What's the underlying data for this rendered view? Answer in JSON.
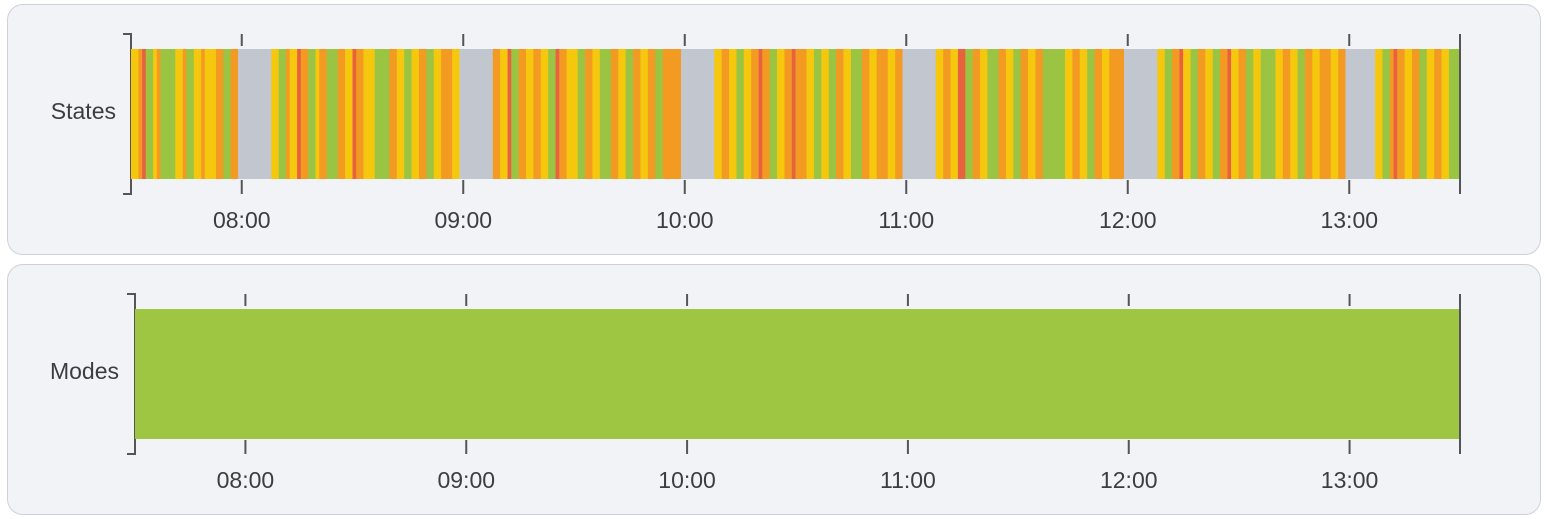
{
  "chart_data": [
    {
      "type": "timeline",
      "row_label": "States",
      "x_ticks": [
        "08:00",
        "09:00",
        "10:00",
        "11:00",
        "12:00",
        "13:00"
      ],
      "x_range": [
        "07:30",
        "13:30"
      ],
      "colors": {
        "green": "#9bc442",
        "yellow": "#f5c80e",
        "orange": "#f39a23",
        "red": "#e8623f",
        "gray": "#c2c6cf"
      },
      "segments": [
        [
          "07:30",
          "07:32",
          "yellow"
        ],
        [
          "07:32",
          "07:33",
          "orange"
        ],
        [
          "07:33",
          "07:34",
          "red"
        ],
        [
          "07:34",
          "07:36",
          "green"
        ],
        [
          "07:36",
          "07:37",
          "yellow"
        ],
        [
          "07:37",
          "07:38",
          "orange"
        ],
        [
          "07:38",
          "07:42",
          "green"
        ],
        [
          "07:42",
          "07:44",
          "yellow"
        ],
        [
          "07:44",
          "07:45",
          "orange"
        ],
        [
          "07:45",
          "07:47",
          "green"
        ],
        [
          "07:47",
          "07:49",
          "yellow"
        ],
        [
          "07:49",
          "07:50",
          "orange"
        ],
        [
          "07:50",
          "07:53",
          "yellow"
        ],
        [
          "07:53",
          "07:55",
          "orange"
        ],
        [
          "07:55",
          "07:57",
          "green"
        ],
        [
          "07:57",
          "07:59",
          "orange"
        ],
        [
          "07:59",
          "08:08",
          "gray"
        ],
        [
          "08:08",
          "08:10",
          "yellow"
        ],
        [
          "08:10",
          "08:12",
          "green"
        ],
        [
          "08:12",
          "08:13",
          "orange"
        ],
        [
          "08:13",
          "08:15",
          "yellow"
        ],
        [
          "08:15",
          "08:16",
          "red"
        ],
        [
          "08:16",
          "08:18",
          "orange"
        ],
        [
          "08:18",
          "08:20",
          "green"
        ],
        [
          "08:20",
          "08:21",
          "yellow"
        ],
        [
          "08:21",
          "08:23",
          "orange"
        ],
        [
          "08:23",
          "08:26",
          "green"
        ],
        [
          "08:26",
          "08:28",
          "orange"
        ],
        [
          "08:28",
          "08:30",
          "yellow"
        ],
        [
          "08:30",
          "08:31",
          "red"
        ],
        [
          "08:31",
          "08:33",
          "orange"
        ],
        [
          "08:33",
          "08:36",
          "yellow"
        ],
        [
          "08:36",
          "08:40",
          "green"
        ],
        [
          "08:40",
          "08:42",
          "orange"
        ],
        [
          "08:42",
          "08:44",
          "yellow"
        ],
        [
          "08:44",
          "08:46",
          "green"
        ],
        [
          "08:46",
          "08:48",
          "yellow"
        ],
        [
          "08:48",
          "08:50",
          "orange"
        ],
        [
          "08:50",
          "08:52",
          "green"
        ],
        [
          "08:52",
          "08:54",
          "yellow"
        ],
        [
          "08:54",
          "08:57",
          "orange"
        ],
        [
          "08:57",
          "08:59",
          "yellow"
        ],
        [
          "08:59",
          "09:08",
          "gray"
        ],
        [
          "09:08",
          "09:10",
          "orange"
        ],
        [
          "09:10",
          "09:12",
          "yellow"
        ],
        [
          "09:12",
          "09:13",
          "red"
        ],
        [
          "09:13",
          "09:15",
          "green"
        ],
        [
          "09:15",
          "09:17",
          "orange"
        ],
        [
          "09:17",
          "09:19",
          "yellow"
        ],
        [
          "09:19",
          "09:21",
          "orange"
        ],
        [
          "09:21",
          "09:23",
          "yellow"
        ],
        [
          "09:23",
          "09:25",
          "green"
        ],
        [
          "09:25",
          "09:26",
          "red"
        ],
        [
          "09:26",
          "09:28",
          "orange"
        ],
        [
          "09:28",
          "09:31",
          "yellow"
        ],
        [
          "09:31",
          "09:33",
          "green"
        ],
        [
          "09:33",
          "09:35",
          "orange"
        ],
        [
          "09:35",
          "09:37",
          "yellow"
        ],
        [
          "09:37",
          "09:40",
          "green"
        ],
        [
          "09:40",
          "09:42",
          "orange"
        ],
        [
          "09:42",
          "09:44",
          "yellow"
        ],
        [
          "09:44",
          "09:46",
          "green"
        ],
        [
          "09:46",
          "09:48",
          "orange"
        ],
        [
          "09:48",
          "09:50",
          "yellow"
        ],
        [
          "09:50",
          "09:52",
          "orange"
        ],
        [
          "09:52",
          "09:54",
          "green"
        ],
        [
          "09:54",
          "09:57",
          "orange"
        ],
        [
          "09:57",
          "09:59",
          "orange"
        ],
        [
          "09:59",
          "10:08",
          "gray"
        ],
        [
          "10:08",
          "10:10",
          "yellow"
        ],
        [
          "10:10",
          "10:12",
          "orange"
        ],
        [
          "10:12",
          "10:14",
          "yellow"
        ],
        [
          "10:14",
          "10:16",
          "green"
        ],
        [
          "10:16",
          "10:18",
          "yellow"
        ],
        [
          "10:18",
          "10:20",
          "orange"
        ],
        [
          "10:20",
          "10:21",
          "red"
        ],
        [
          "10:21",
          "10:23",
          "orange"
        ],
        [
          "10:23",
          "10:25",
          "green"
        ],
        [
          "10:25",
          "10:27",
          "yellow"
        ],
        [
          "10:27",
          "10:29",
          "orange"
        ],
        [
          "10:29",
          "10:30",
          "red"
        ],
        [
          "10:30",
          "10:33",
          "orange"
        ],
        [
          "10:33",
          "10:35",
          "yellow"
        ],
        [
          "10:35",
          "10:37",
          "green"
        ],
        [
          "10:37",
          "10:39",
          "yellow"
        ],
        [
          "10:39",
          "10:41",
          "green"
        ],
        [
          "10:41",
          "10:43",
          "orange"
        ],
        [
          "10:43",
          "10:45",
          "yellow"
        ],
        [
          "10:45",
          "10:48",
          "green"
        ],
        [
          "10:48",
          "10:50",
          "orange"
        ],
        [
          "10:50",
          "10:52",
          "yellow"
        ],
        [
          "10:52",
          "10:55",
          "orange"
        ],
        [
          "10:55",
          "10:57",
          "yellow"
        ],
        [
          "10:57",
          "10:59",
          "orange"
        ],
        [
          "10:59",
          "11:08",
          "gray"
        ],
        [
          "11:08",
          "11:10",
          "yellow"
        ],
        [
          "11:10",
          "11:12",
          "orange"
        ],
        [
          "11:12",
          "11:14",
          "yellow"
        ],
        [
          "11:14",
          "11:16",
          "red"
        ],
        [
          "11:16",
          "11:18",
          "green"
        ],
        [
          "11:18",
          "11:20",
          "orange"
        ],
        [
          "11:20",
          "11:22",
          "yellow"
        ],
        [
          "11:22",
          "11:25",
          "green"
        ],
        [
          "11:25",
          "11:27",
          "orange"
        ],
        [
          "11:27",
          "11:29",
          "yellow"
        ],
        [
          "11:29",
          "11:31",
          "green"
        ],
        [
          "11:31",
          "11:33",
          "orange"
        ],
        [
          "11:33",
          "11:35",
          "yellow"
        ],
        [
          "11:35",
          "11:37",
          "orange"
        ],
        [
          "11:37",
          "11:39",
          "green"
        ],
        [
          "11:39",
          "11:43",
          "green"
        ],
        [
          "11:43",
          "11:45",
          "yellow"
        ],
        [
          "11:45",
          "11:47",
          "orange"
        ],
        [
          "11:47",
          "11:49",
          "yellow"
        ],
        [
          "11:49",
          "11:51",
          "green"
        ],
        [
          "11:51",
          "11:53",
          "orange"
        ],
        [
          "11:53",
          "11:55",
          "yellow"
        ],
        [
          "11:55",
          "11:59",
          "orange"
        ],
        [
          "11:59",
          "12:08",
          "gray"
        ],
        [
          "12:08",
          "12:10",
          "yellow"
        ],
        [
          "12:10",
          "12:12",
          "green"
        ],
        [
          "12:12",
          "12:14",
          "orange"
        ],
        [
          "12:14",
          "12:15",
          "red"
        ],
        [
          "12:15",
          "12:17",
          "yellow"
        ],
        [
          "12:17",
          "12:19",
          "green"
        ],
        [
          "12:19",
          "12:21",
          "orange"
        ],
        [
          "12:21",
          "12:23",
          "yellow"
        ],
        [
          "12:23",
          "12:25",
          "green"
        ],
        [
          "12:25",
          "12:27",
          "orange"
        ],
        [
          "12:27",
          "12:28",
          "red"
        ],
        [
          "12:28",
          "12:30",
          "yellow"
        ],
        [
          "12:30",
          "12:32",
          "orange"
        ],
        [
          "12:32",
          "12:34",
          "green"
        ],
        [
          "12:34",
          "12:36",
          "yellow"
        ],
        [
          "12:36",
          "12:40",
          "green"
        ],
        [
          "12:40",
          "12:42",
          "yellow"
        ],
        [
          "12:42",
          "12:44",
          "orange"
        ],
        [
          "12:44",
          "12:46",
          "yellow"
        ],
        [
          "12:46",
          "12:48",
          "green"
        ],
        [
          "12:48",
          "12:50",
          "orange"
        ],
        [
          "12:50",
          "12:52",
          "yellow"
        ],
        [
          "12:52",
          "12:55",
          "orange"
        ],
        [
          "12:55",
          "12:57",
          "yellow"
        ],
        [
          "12:57",
          "12:59",
          "orange"
        ],
        [
          "12:59",
          "13:07",
          "gray"
        ],
        [
          "13:07",
          "13:09",
          "yellow"
        ],
        [
          "13:09",
          "13:11",
          "green"
        ],
        [
          "13:11",
          "13:12",
          "orange"
        ],
        [
          "13:12",
          "13:13",
          "red"
        ],
        [
          "13:13",
          "13:15",
          "orange"
        ],
        [
          "13:15",
          "13:17",
          "yellow"
        ],
        [
          "13:17",
          "13:19",
          "orange"
        ],
        [
          "13:19",
          "13:21",
          "green"
        ],
        [
          "13:21",
          "13:23",
          "yellow"
        ],
        [
          "13:23",
          "13:25",
          "orange"
        ],
        [
          "13:25",
          "13:27",
          "yellow"
        ],
        [
          "13:27",
          "13:30",
          "green"
        ]
      ]
    },
    {
      "type": "timeline",
      "row_label": "Modes",
      "x_ticks": [
        "08:00",
        "09:00",
        "10:00",
        "11:00",
        "12:00",
        "13:00"
      ],
      "x_range": [
        "07:30",
        "13:30"
      ],
      "colors": {
        "green": "#9fc643"
      },
      "segments": [
        [
          "07:30",
          "13:30",
          "green"
        ]
      ]
    }
  ]
}
